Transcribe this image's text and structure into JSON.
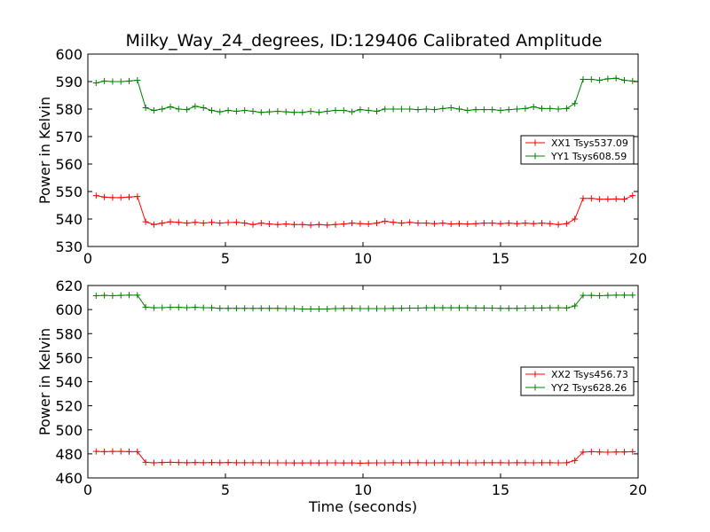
{
  "colors": {
    "xx": "#ff0000",
    "yy": "#008000"
  },
  "chart_data": [
    {
      "type": "line",
      "title": "Milky_Way_24_degrees, ID:129406 Calibrated Amplitude",
      "xlabel": "",
      "ylabel": "Power in Kelvin",
      "xlim": [
        0,
        20
      ],
      "ylim": [
        530,
        600
      ],
      "xticks": [
        0,
        5,
        10,
        15,
        20
      ],
      "yticks": [
        530,
        540,
        550,
        560,
        570,
        580,
        590,
        600
      ],
      "grid": false,
      "legend": "right",
      "x": [
        0.3,
        0.6,
        0.9,
        1.2,
        1.5,
        1.8,
        2.1,
        2.4,
        2.7,
        3.0,
        3.3,
        3.6,
        3.9,
        4.2,
        4.5,
        4.8,
        5.1,
        5.4,
        5.7,
        6.0,
        6.3,
        6.6,
        6.9,
        7.2,
        7.5,
        7.8,
        8.1,
        8.4,
        8.7,
        9.0,
        9.3,
        9.6,
        9.9,
        10.2,
        10.5,
        10.8,
        11.1,
        11.4,
        11.7,
        12.0,
        12.3,
        12.6,
        12.9,
        13.2,
        13.5,
        13.8,
        14.1,
        14.4,
        14.7,
        15.0,
        15.3,
        15.6,
        15.9,
        16.2,
        16.5,
        16.8,
        17.1,
        17.4,
        17.7,
        18.0,
        18.3,
        18.6,
        18.9,
        19.2,
        19.5,
        19.8
      ],
      "series": [
        {
          "name": "XX1 Tsys537.09",
          "color_key": "xx",
          "values": [
            548.5,
            548,
            547.8,
            547.8,
            548,
            548.2,
            539,
            538,
            538.5,
            539,
            538.8,
            538.5,
            538.8,
            538.5,
            538.8,
            538.5,
            538.7,
            538.8,
            538.5,
            538,
            538.5,
            538.2,
            538,
            538.2,
            538,
            538,
            537.8,
            538,
            537.8,
            538,
            538.2,
            538.5,
            538.3,
            538.2,
            538.5,
            539.2,
            538.8,
            538.5,
            538.8,
            538.5,
            538.5,
            538.3,
            538.5,
            538.2,
            538.3,
            538.2,
            538.3,
            538.5,
            538.5,
            538.3,
            538.5,
            538.3,
            538.5,
            538.3,
            538.5,
            538.3,
            538,
            538.3,
            540,
            547.5,
            547.5,
            547.2,
            547.2,
            547.3,
            547.2,
            548.5
          ]
        },
        {
          "name": "YY1 Tsys608.59",
          "color_key": "yy",
          "values": [
            589.5,
            590.2,
            590,
            590,
            590.2,
            590.5,
            580.5,
            579.5,
            580,
            580.8,
            580,
            579.8,
            581,
            580.5,
            579.5,
            579,
            579.5,
            579.2,
            579.5,
            579.2,
            578.8,
            579,
            579.2,
            579,
            578.8,
            578.8,
            579.2,
            578.8,
            579.2,
            579.5,
            579.5,
            579,
            579.8,
            579.5,
            579.2,
            580,
            580,
            580,
            580,
            579.8,
            580,
            579.8,
            580.2,
            580.5,
            580,
            579.5,
            579.8,
            579.8,
            579.8,
            579.5,
            579.8,
            580,
            580.2,
            580.8,
            580.2,
            580.2,
            580,
            580.2,
            582,
            590.8,
            590.8,
            590.5,
            591,
            591.2,
            590.5,
            590.2
          ]
        }
      ]
    },
    {
      "type": "line",
      "title": "",
      "xlabel": "Time (seconds)",
      "ylabel": "Power in Kelvin",
      "xlim": [
        0,
        20
      ],
      "ylim": [
        460,
        620
      ],
      "xticks": [
        0,
        5,
        10,
        15,
        20
      ],
      "yticks": [
        460,
        480,
        500,
        520,
        540,
        560,
        580,
        600,
        620
      ],
      "grid": false,
      "legend": "right",
      "x": [
        0.3,
        0.6,
        0.9,
        1.2,
        1.5,
        1.8,
        2.1,
        2.4,
        2.7,
        3.0,
        3.3,
        3.6,
        3.9,
        4.2,
        4.5,
        4.8,
        5.1,
        5.4,
        5.7,
        6.0,
        6.3,
        6.6,
        6.9,
        7.2,
        7.5,
        7.8,
        8.1,
        8.4,
        8.7,
        9.0,
        9.3,
        9.6,
        9.9,
        10.2,
        10.5,
        10.8,
        11.1,
        11.4,
        11.7,
        12.0,
        12.3,
        12.6,
        12.9,
        13.2,
        13.5,
        13.8,
        14.1,
        14.4,
        14.7,
        15.0,
        15.3,
        15.6,
        15.9,
        16.2,
        16.5,
        16.8,
        17.1,
        17.4,
        17.7,
        18.0,
        18.3,
        18.6,
        18.9,
        19.2,
        19.5,
        19.8
      ],
      "series": [
        {
          "name": "XX2 Tsys456.73",
          "color_key": "xx",
          "values": [
            482,
            481.8,
            482,
            482,
            481.8,
            481.8,
            473,
            472.5,
            472.8,
            473,
            472.8,
            472.6,
            472.8,
            472.6,
            472.8,
            472.6,
            472.8,
            472.6,
            472.6,
            472.6,
            472.6,
            472.5,
            472.5,
            472.5,
            472.4,
            472.4,
            472.5,
            472.4,
            472.5,
            472.5,
            472.4,
            472.5,
            472.3,
            472.4,
            472.5,
            472.5,
            472.6,
            472.5,
            472.6,
            472.6,
            472.5,
            472.5,
            472.6,
            472.5,
            472.6,
            472.5,
            472.5,
            472.6,
            472.6,
            472.6,
            472.5,
            472.6,
            472.6,
            472.5,
            472.6,
            472.6,
            472.5,
            472.6,
            474.5,
            481.5,
            481.8,
            481.6,
            481.4,
            481.6,
            481.6,
            481.8
          ]
        },
        {
          "name": "YY2 Tsys628.26",
          "color_key": "yy",
          "values": [
            611.5,
            611.8,
            611.5,
            611.8,
            612,
            612,
            602,
            601.5,
            601.6,
            601.8,
            601.8,
            601.6,
            601.8,
            601.6,
            601.5,
            601,
            601,
            601,
            601,
            601,
            601,
            601,
            601,
            600.8,
            600.8,
            600.5,
            600.5,
            600.5,
            600.5,
            600.8,
            601,
            601,
            600.8,
            600.8,
            600.8,
            600.8,
            601,
            601,
            601.2,
            601.2,
            601.5,
            601.5,
            601.5,
            601.5,
            601.5,
            601.5,
            601.3,
            601.3,
            601.2,
            601,
            601,
            601,
            601.2,
            601.3,
            601.3,
            601.5,
            601.5,
            601.3,
            603,
            611.8,
            611.8,
            611.5,
            611.8,
            612,
            612,
            612
          ]
        }
      ]
    }
  ]
}
